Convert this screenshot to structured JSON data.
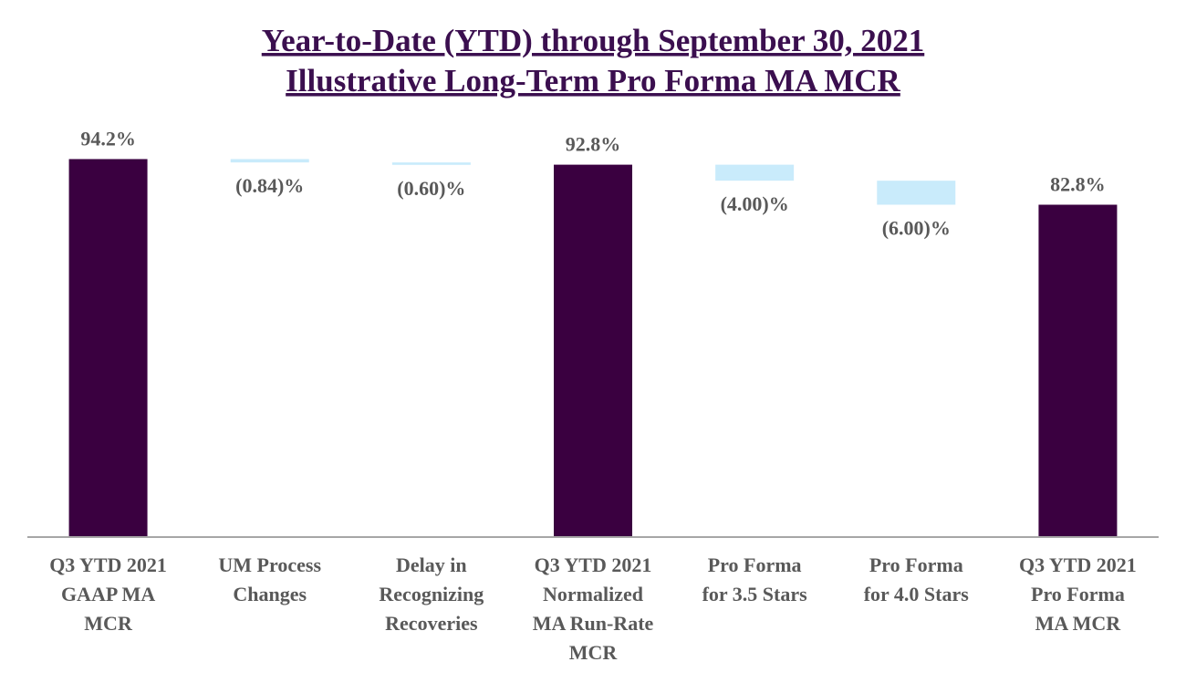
{
  "chart_data": {
    "type": "waterfall",
    "title": [
      "Year-to-Date (YTD) through September 30, 2021",
      "Illustrative Long-Term Pro Forma MA MCR"
    ],
    "categories": [
      [
        "Q3 YTD 2021",
        "GAAP MA",
        "MCR"
      ],
      [
        "UM Process",
        "Changes"
      ],
      [
        "Delay in",
        "Recognizing",
        "Recoveries"
      ],
      [
        "Q3 YTD 2021",
        "Normalized",
        "MA Run-Rate",
        "MCR"
      ],
      [
        "Pro Forma",
        "for 3.5 Stars"
      ],
      [
        "Pro Forma",
        "for 4.0 Stars"
      ],
      [
        "Q3 YTD 2021",
        "Pro Forma",
        "MA MCR"
      ]
    ],
    "values": [
      94.2,
      -0.84,
      -0.6,
      92.8,
      -4.0,
      -6.0,
      82.8
    ],
    "value_labels": [
      "94.2%",
      "(0.84)%",
      "(0.60)%",
      "92.8%",
      "(4.00)%",
      "(6.00)%",
      "82.8%"
    ],
    "measure": [
      "absolute",
      "relative",
      "relative",
      "absolute",
      "relative",
      "relative",
      "absolute"
    ],
    "colors": {
      "absolute": "#3a0040",
      "relative": "#c9ebfb"
    },
    "ylim": [
      0,
      100
    ]
  }
}
